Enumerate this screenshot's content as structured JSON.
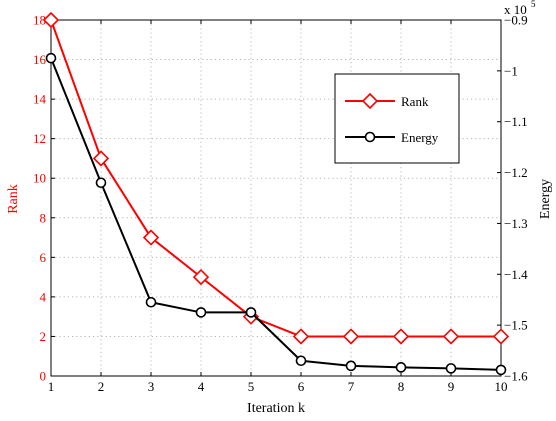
{
  "chart_data": {
    "type": "line",
    "xlabel": "Iteration k",
    "ylabel_left": "Rank",
    "ylabel_right": "Energy",
    "right_axis_multiplier": "x 10",
    "right_axis_exponent": "5",
    "x": [
      1,
      2,
      3,
      4,
      5,
      6,
      7,
      8,
      9,
      10
    ],
    "xlim": [
      1,
      10
    ],
    "ylim_left": [
      0,
      18
    ],
    "ylim_right": [
      -1.6,
      -0.9
    ],
    "x_ticks": [
      "1",
      "2",
      "3",
      "4",
      "5",
      "6",
      "7",
      "8",
      "9",
      "10"
    ],
    "y_left_ticks": [
      "0",
      "2",
      "4",
      "6",
      "8",
      "10",
      "12",
      "14",
      "16",
      "18"
    ],
    "y_right_ticks": [
      "-0.9",
      "-1",
      "-1.1",
      "-1.2",
      "-1.3",
      "-1.4",
      "-1.5",
      "-1.6"
    ],
    "grid": true,
    "legend_position": "top-right",
    "series": [
      {
        "name": "Rank",
        "axis": "left",
        "color": "#ff0000",
        "marker": "diamond",
        "values": [
          18,
          11,
          7,
          5,
          3,
          2,
          2,
          2,
          2,
          2
        ]
      },
      {
        "name": "Energy",
        "axis": "right",
        "color": "#000000",
        "marker": "circle",
        "values": [
          -0.975,
          -1.22,
          -1.455,
          -1.475,
          -1.475,
          -1.57,
          -1.58,
          -1.583,
          -1.585,
          -1.588
        ]
      }
    ]
  }
}
